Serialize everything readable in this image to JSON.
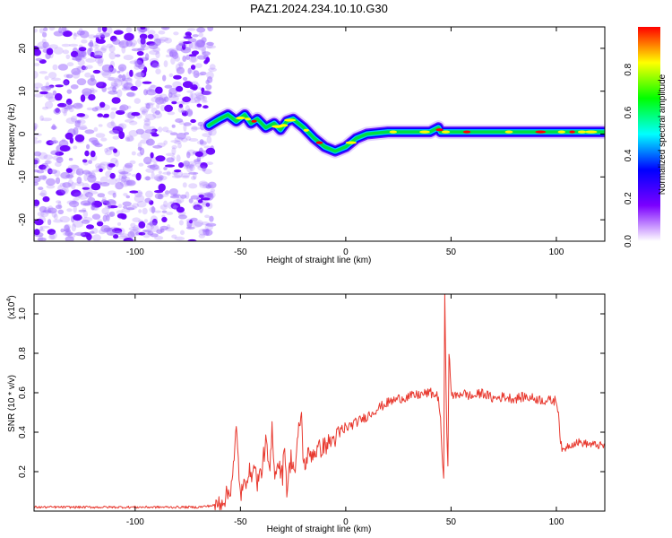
{
  "title": "PAZ1.2024.234.10.10.G30",
  "chart_data": [
    {
      "type": "heatmap",
      "xlabel": "Height of straight line (km)",
      "ylabel": "Frequency (Hz)",
      "xlim": [
        -148,
        123
      ],
      "ylim": [
        -25,
        25
      ],
      "xticks": [
        -100,
        -50,
        0,
        50,
        100
      ],
      "yticks": [
        -20,
        -10,
        0,
        10,
        20
      ],
      "noise_region_x": [
        -148,
        -63
      ],
      "ridge": {
        "x": [
          -65,
          -60,
          -56,
          -52,
          -48,
          -45,
          -42,
          -38,
          -34,
          -31,
          -28,
          -25,
          -20,
          -15,
          -10,
          -5,
          0,
          5,
          10,
          20,
          30,
          40,
          44,
          45,
          50,
          60,
          70,
          80,
          90,
          100,
          110,
          123
        ],
        "y": [
          2,
          3.5,
          4.5,
          3,
          4.5,
          2.5,
          3.5,
          1.5,
          2.5,
          1,
          3,
          3.5,
          1.5,
          -1,
          -3,
          -4,
          -3,
          -1,
          0,
          0.5,
          0.5,
          0.5,
          1.5,
          0.5,
          0.5,
          0.5,
          0.5,
          0.5,
          0.5,
          0.5,
          0.5,
          0.5
        ]
      },
      "colorbar": {
        "label": "Normalized spectral amplitude",
        "range": [
          0,
          1
        ],
        "ticks": [
          "0.0",
          "0.2",
          "0.4",
          "0.6",
          "0.8"
        ],
        "colors": [
          "#ffffff",
          "#7b00ff",
          "#0000ff",
          "#00ffff",
          "#00ff00",
          "#ffff00",
          "#ff0000"
        ]
      }
    },
    {
      "type": "line",
      "xlabel": "Height of straight line (km)",
      "ylabel": "SNR (10 * v/v)",
      "scale_label": "(x10",
      "scale_exp": "4",
      "scale_close": ")",
      "xlim": [
        -148,
        123
      ],
      "ylim": [
        0,
        1.1
      ],
      "xticks": [
        -100,
        -50,
        0,
        50,
        100
      ],
      "yticks": [
        0.2,
        0.4,
        0.6,
        0.8,
        1.0
      ],
      "series": [
        {
          "color": "#e8392f",
          "x": [
            -148,
            -100,
            -70,
            -62,
            -58,
            -55,
            -53,
            -52,
            -51,
            -50,
            -48,
            -46,
            -45,
            -44,
            -42,
            -40,
            -38,
            -36,
            -35,
            -34,
            -32,
            -30,
            -29,
            -28,
            -26,
            -24,
            -22,
            -21,
            -20,
            -18,
            -15,
            -10,
            -5,
            0,
            5,
            10,
            15,
            20,
            25,
            30,
            35,
            40,
            44,
            45,
            46,
            46.5,
            47,
            48,
            48.5,
            49,
            50,
            52,
            55,
            60,
            65,
            70,
            75,
            80,
            85,
            90,
            95,
            100,
            101,
            102,
            103,
            105,
            110,
            115,
            123
          ],
          "y": [
            0.02,
            0.02,
            0.02,
            0.03,
            0.06,
            0.1,
            0.25,
            0.42,
            0.25,
            0.08,
            0.13,
            0.22,
            0.15,
            0.25,
            0.15,
            0.2,
            0.35,
            0.18,
            0.42,
            0.2,
            0.25,
            0.18,
            0.36,
            0.1,
            0.27,
            0.2,
            0.45,
            0.48,
            0.22,
            0.28,
            0.3,
            0.33,
            0.37,
            0.42,
            0.45,
            0.48,
            0.52,
            0.55,
            0.57,
            0.58,
            0.59,
            0.6,
            0.58,
            0.45,
            0.25,
            0.15,
            1.08,
            0.4,
            0.25,
            0.82,
            0.6,
            0.58,
            0.6,
            0.58,
            0.6,
            0.57,
            0.58,
            0.57,
            0.58,
            0.57,
            0.56,
            0.56,
            0.5,
            0.35,
            0.3,
            0.33,
            0.35,
            0.34,
            0.33
          ]
        }
      ]
    }
  ]
}
